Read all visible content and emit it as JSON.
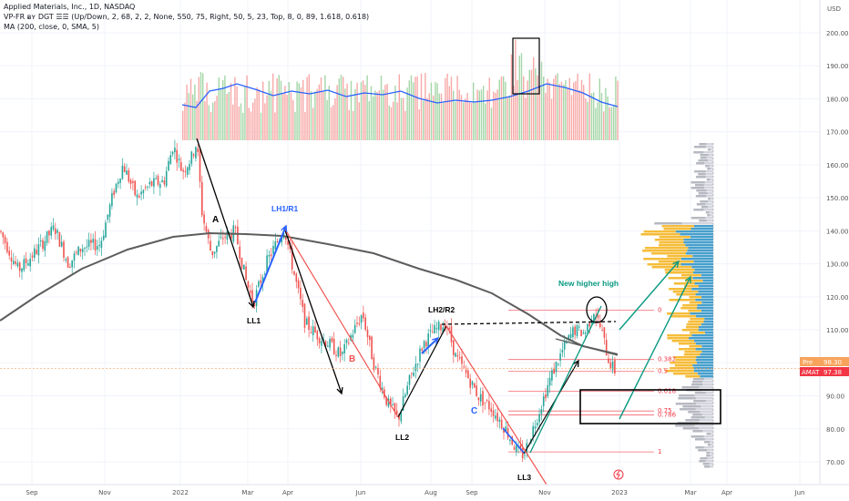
{
  "legend": {
    "symbol_line": "Applied Materials, Inc., 1D, NASDAQ",
    "vpfr_line": "VP-FR ᴃʏ DGT ☰☰ (Up/Down, 2, 68, 2, 2, None, 550, 75, Right, 50, 5, 23, Top, 8, 0, 89, 1.618, 0.618)",
    "ma_line": "MA (200, close, 0, SMA, 5)"
  },
  "price_axis": {
    "currency": "USD",
    "ticks": [
      "200.00",
      "190.00",
      "180.00",
      "170.00",
      "160.00",
      "150.00",
      "140.00",
      "130.00",
      "120.00",
      "110.00",
      "100.00",
      "90.00",
      "80.00",
      "70.00"
    ],
    "tick_values": [
      200,
      190,
      180,
      170,
      160,
      150,
      140,
      130,
      120,
      110,
      100,
      90,
      80,
      70
    ]
  },
  "time_axis": {
    "ticks": [
      "Sep",
      "Nov",
      "2022",
      "Mar",
      "Apr",
      "Jun",
      "Aug",
      "Sep",
      "Nov",
      "2023",
      "Mar",
      "Apr",
      "Jun"
    ]
  },
  "badges": {
    "pre_label": "Pre",
    "pre_value": "98.30",
    "ticker_label": "AMAT",
    "ticker_value": "97.38"
  },
  "annotations": {
    "A": "A",
    "LH1R1": "LH1/R1",
    "LL1": "LL1",
    "B": "B",
    "LH2R2": "LH2/R2",
    "LL2": "LL2",
    "C": "C",
    "LL3": "LL3",
    "new_high": "New higher high"
  },
  "fib_levels": {
    "labels": [
      "0",
      "0.382",
      "0.5",
      "0.618",
      "0.75",
      "0.786",
      "1"
    ],
    "prices": [
      116,
      101,
      97.4,
      91.4,
      85.4,
      84.2,
      73
    ]
  },
  "colors": {
    "up": "#26a69a",
    "down": "#ef5350",
    "ma": "#5d5d5d",
    "vol_avg": "#2962ff",
    "annot_blue": "#2962ff",
    "annot_green": "#089981",
    "fib": "#f23645",
    "vp_up": "#f5b82e",
    "vp_down": "#3d9ac9",
    "vp_gray": "#b2b5be"
  },
  "chart_data": {
    "type": "candlestick",
    "title": "Applied Materials, Inc., 1D, NASDAQ",
    "y_unit": "USD",
    "ylim": [
      66,
      212
    ],
    "x_range": [
      "2021-08",
      "2023-06"
    ],
    "swing_points": [
      {
        "label": "A",
        "date": "2022-01-04",
        "price": 167
      },
      {
        "label": "LL1",
        "date": "2022-03-07",
        "price": 118
      },
      {
        "label": "LH1/R1",
        "date": "2022-03-29",
        "price": 141
      },
      {
        "label": "B",
        "date": "2022-05-10",
        "price": 103
      },
      {
        "label": "LL2",
        "date": "2022-07-05",
        "price": 83
      },
      {
        "label": "LH2/R2",
        "date": "2022-08-10",
        "price": 112
      },
      {
        "label": "C",
        "date": "2022-09-20",
        "price": 88
      },
      {
        "label": "LL3",
        "date": "2022-10-13",
        "price": 72
      },
      {
        "label": "New higher high",
        "date": "2022-12-01",
        "price": 116
      }
    ],
    "last_price": 97.38,
    "pre_market_price": 98.3,
    "series": [
      {
        "name": "MA (200, close, 0, SMA, 5)",
        "type": "line"
      }
    ]
  }
}
